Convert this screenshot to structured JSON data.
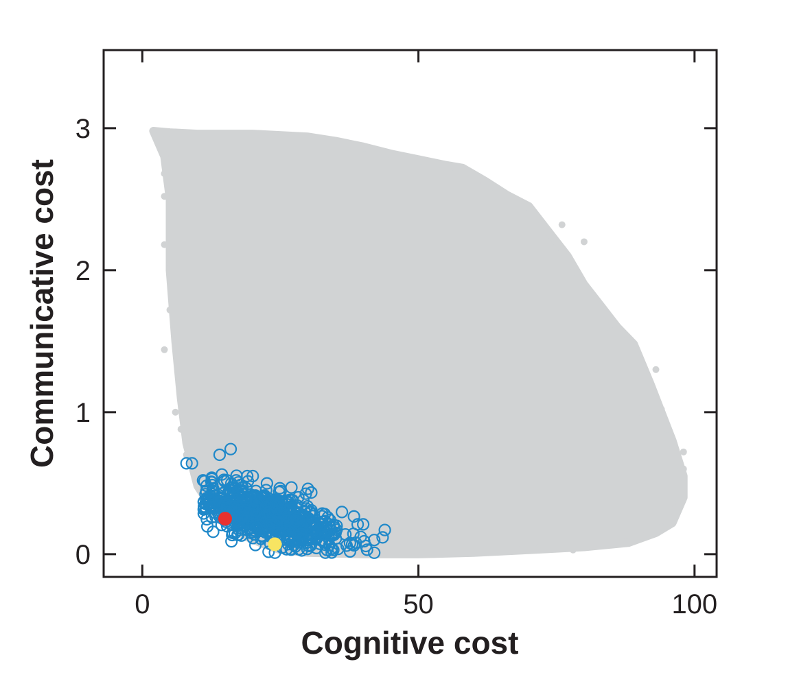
{
  "chart_data": {
    "type": "scatter",
    "xlabel": "Cognitive cost",
    "ylabel": "Communicative cost",
    "xlim": [
      -7,
      104
    ],
    "ylim": [
      -0.16,
      3.55
    ],
    "x_ticks": [
      0,
      50,
      100
    ],
    "y_ticks": [
      0,
      1,
      2,
      3
    ],
    "x_tick_labels": [
      "0",
      "50",
      "100"
    ],
    "y_tick_labels": [
      "0",
      "1",
      "2",
      "3"
    ],
    "grid": false,
    "legend": "none",
    "series": [
      {
        "kind": "dense-cloud",
        "color": "#d1d3d4",
        "boundary": [
          [
            2,
            2.98
          ],
          [
            5,
            2.97
          ],
          [
            10,
            2.96
          ],
          [
            20,
            2.96
          ],
          [
            30,
            2.94
          ],
          [
            35,
            2.91
          ],
          [
            40,
            2.87
          ],
          [
            45,
            2.82
          ],
          [
            50,
            2.78
          ],
          [
            55,
            2.74
          ],
          [
            58,
            2.72
          ],
          [
            62,
            2.63
          ],
          [
            66,
            2.53
          ],
          [
            70,
            2.45
          ],
          [
            74,
            2.25
          ],
          [
            77,
            2.1
          ],
          [
            80,
            1.9
          ],
          [
            83,
            1.75
          ],
          [
            86,
            1.6
          ],
          [
            89,
            1.48
          ],
          [
            92,
            1.2
          ],
          [
            94,
            1.0
          ],
          [
            96,
            0.8
          ],
          [
            98,
            0.55
          ],
          [
            98,
            0.4
          ],
          [
            96,
            0.22
          ],
          [
            93,
            0.15
          ],
          [
            88,
            0.08
          ],
          [
            80,
            0.05
          ],
          [
            70,
            0.03
          ],
          [
            60,
            0.01
          ],
          [
            50,
            0.0
          ],
          [
            40,
            0.0
          ],
          [
            30,
            0.01
          ],
          [
            25,
            0.03
          ],
          [
            22,
            0.07
          ],
          [
            19,
            0.12
          ],
          [
            16,
            0.2
          ],
          [
            13,
            0.3
          ],
          [
            10,
            0.48
          ],
          [
            8,
            0.78
          ],
          [
            7,
            1.1
          ],
          [
            6,
            1.5
          ],
          [
            5,
            2.0
          ],
          [
            5,
            2.5
          ],
          [
            4,
            2.8
          ],
          [
            2,
            2.98
          ]
        ],
        "scatter_points": [
          [
            2,
            2.98
          ],
          [
            4,
            2.68
          ],
          [
            4,
            2.52
          ],
          [
            4,
            2.18
          ],
          [
            4,
            1.44
          ],
          [
            5,
            2.05
          ],
          [
            5,
            1.72
          ],
          [
            6,
            1.0
          ],
          [
            7,
            0.88
          ],
          [
            8,
            0.7
          ],
          [
            84,
            1.6
          ],
          [
            87,
            1.55
          ],
          [
            90,
            1.0
          ],
          [
            93,
            1.3
          ],
          [
            94,
            1.02
          ],
          [
            95,
            0.88
          ],
          [
            95,
            0.78
          ],
          [
            96,
            0.6
          ],
          [
            98,
            0.72
          ],
          [
            98,
            0.6
          ],
          [
            98,
            0.5
          ],
          [
            96,
            0.36
          ],
          [
            94,
            0.28
          ],
          [
            94,
            0.19
          ],
          [
            92,
            0.16
          ],
          [
            86,
            0.08
          ],
          [
            78,
            0.03
          ],
          [
            72,
            0.05
          ],
          [
            80,
            2.2
          ],
          [
            76,
            2.32
          ]
        ]
      },
      {
        "kind": "open-circles",
        "color": "#1f88c9",
        "cluster": {
          "center": [
            23,
            0.26
          ],
          "spread": [
            6.5,
            0.12
          ]
        },
        "outliers": [
          [
            8,
            0.64
          ],
          [
            9,
            0.64
          ],
          [
            14,
            0.7
          ],
          [
            16,
            0.74
          ],
          [
            11,
            0.52
          ],
          [
            37,
            0.06
          ],
          [
            38,
            0.07
          ],
          [
            39,
            0.21
          ],
          [
            40,
            0.21
          ],
          [
            42,
            0.1
          ],
          [
            42,
            0.01
          ],
          [
            34,
            0.24
          ],
          [
            34,
            0.19
          ],
          [
            35,
            0.15
          ],
          [
            30,
            0.46
          ],
          [
            27,
            0.47
          ],
          [
            20,
            0.55
          ],
          [
            19,
            0.55
          ],
          [
            17,
            0.52
          ]
        ]
      },
      {
        "kind": "highlight",
        "color": "#e8312f",
        "points": [
          [
            15,
            0.25
          ]
        ]
      },
      {
        "kind": "highlight",
        "color": "#f7e462",
        "points": [
          [
            24,
            0.07
          ]
        ]
      }
    ]
  }
}
